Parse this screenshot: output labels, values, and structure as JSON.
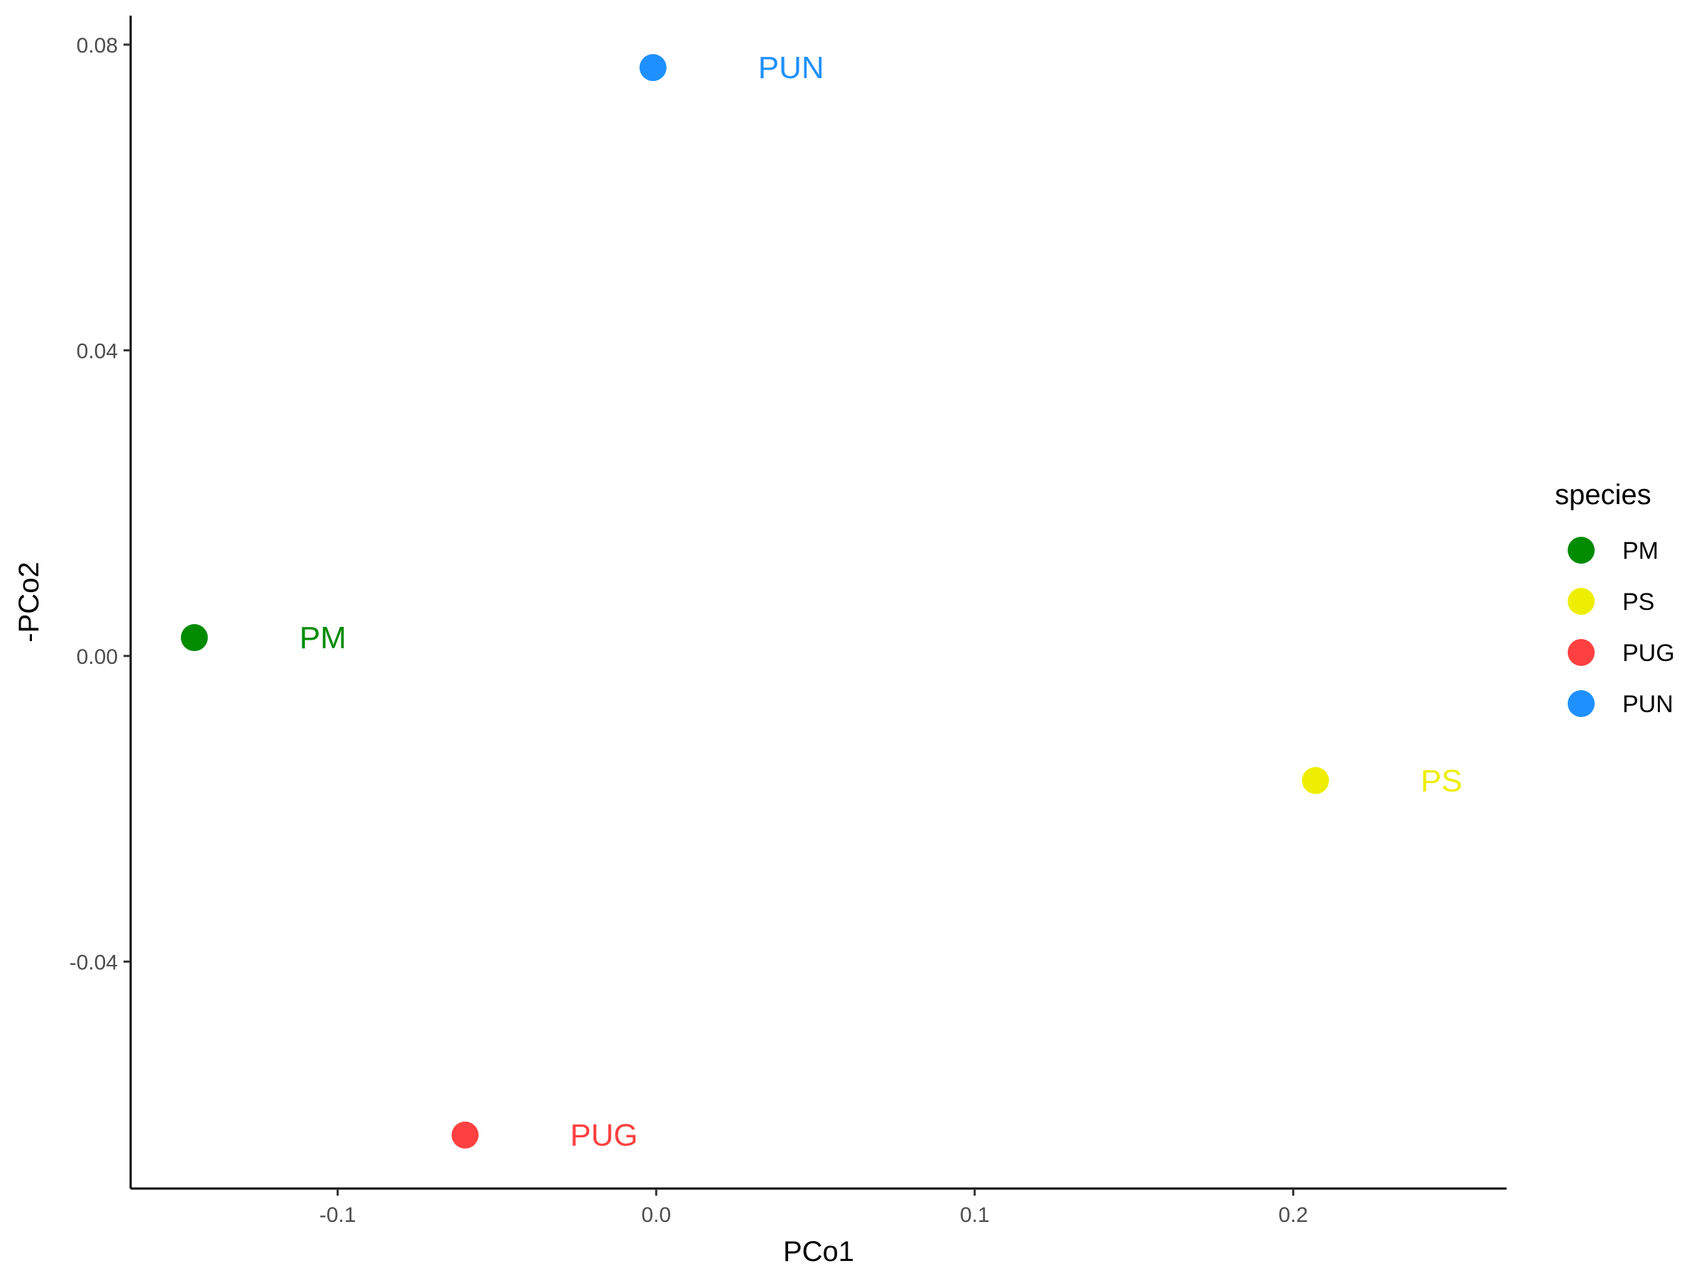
{
  "chart_data": {
    "type": "scatter",
    "title": "",
    "xlabel": "PCo1",
    "ylabel": "-PCo2",
    "xlim": [
      -0.165,
      0.267
    ],
    "ylim": [
      -0.0697,
      0.0838
    ],
    "x_ticks": [
      -0.1,
      0.0,
      0.1,
      0.2
    ],
    "x_tick_labels": [
      "-0.1",
      "0.0",
      "0.1",
      "0.2"
    ],
    "y_ticks": [
      -0.04,
      0.0,
      0.04,
      0.08
    ],
    "y_tick_labels": [
      "-0.04",
      "0.00",
      "0.04",
      "0.08"
    ],
    "grid": false,
    "legend_position": "right",
    "legend_title": "species",
    "series": [
      {
        "name": "PM",
        "color": "#008B00",
        "x": -0.145,
        "y": 0.0024,
        "label": "PM"
      },
      {
        "name": "PS",
        "color": "#EEEE00",
        "x": 0.207,
        "y": -0.0163,
        "label": "PS"
      },
      {
        "name": "PUG",
        "color": "#FF4040",
        "x": -0.06,
        "y": -0.0627,
        "label": "PUG"
      },
      {
        "name": "PUN",
        "color": "#1E90FF",
        "x": -0.001,
        "y": 0.077,
        "label": "PUN"
      }
    ]
  }
}
